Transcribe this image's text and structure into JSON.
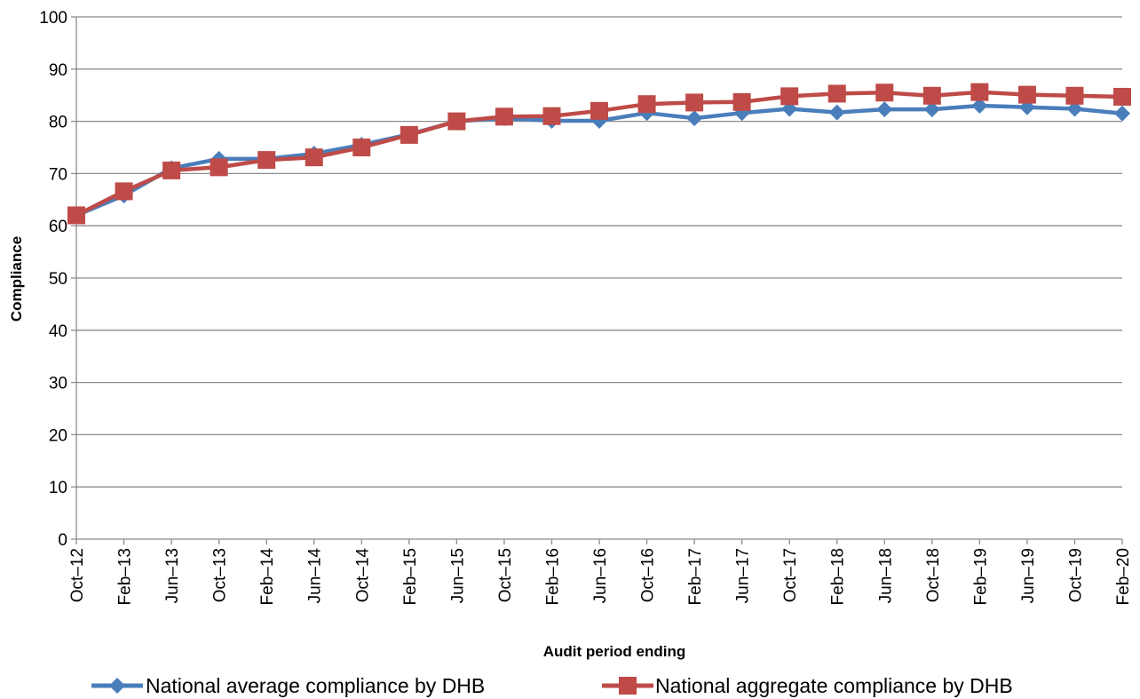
{
  "chart_data": {
    "type": "line",
    "xlabel": "Audit period ending",
    "ylabel": "Compliance",
    "ylim": [
      0,
      100
    ],
    "ytick_step": 10,
    "grid": "horizontal",
    "legend_position": "bottom",
    "categories": [
      "Oct–12",
      "Feb–13",
      "Jun–13",
      "Oct–13",
      "Feb–14",
      "Jun–14",
      "Oct–14",
      "Feb–15",
      "Jun–15",
      "Oct–15",
      "Feb–16",
      "Jun–16",
      "Oct–16",
      "Feb–17",
      "Jun–17",
      "Oct–17",
      "Feb–18",
      "Jun–18",
      "Oct–18",
      "Feb–19",
      "Jun–19",
      "Oct–19",
      "Feb–20"
    ],
    "series": [
      {
        "name": "National average compliance by DHB",
        "color": "#4a7ebb",
        "marker": "diamond",
        "values": [
          62.0,
          65.8,
          71.0,
          72.8,
          72.8,
          73.8,
          75.5,
          77.5,
          80.0,
          80.6,
          80.1,
          80.1,
          81.6,
          80.6,
          81.6,
          82.4,
          81.7,
          82.3,
          82.3,
          83.0,
          82.7,
          82.4,
          81.5
        ]
      },
      {
        "name": "National aggregate compliance by DHB",
        "color": "#be4b48",
        "marker": "square",
        "values": [
          62.0,
          66.6,
          70.6,
          71.2,
          72.6,
          73.1,
          75.0,
          77.4,
          80.0,
          80.9,
          81.0,
          82.0,
          83.3,
          83.6,
          83.7,
          84.8,
          85.3,
          85.5,
          84.9,
          85.6,
          85.1,
          84.9,
          84.7
        ]
      }
    ]
  }
}
